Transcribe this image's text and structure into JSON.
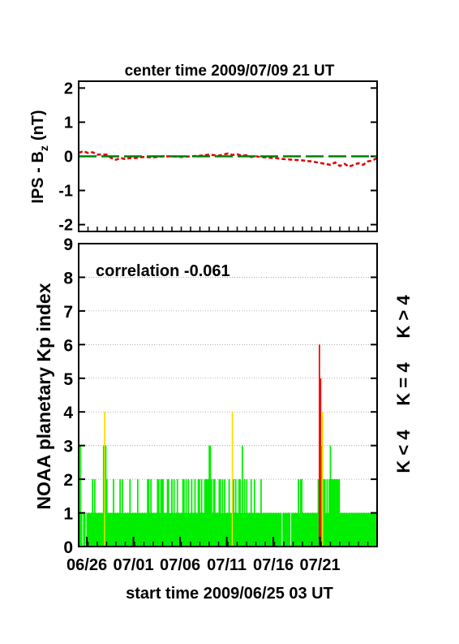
{
  "chart_data": [
    {
      "type": "line",
      "title": "center time 2009/07/09 21 UT",
      "ylabel_main": "IPS - B",
      "ylabel_sub": "z",
      "ylabel_unit": "(nT)",
      "ylim": [
        -2.2,
        2.2
      ],
      "yticks": [
        "2",
        "1",
        "0",
        "-1",
        "-2"
      ],
      "series": [
        {
          "color": "#dd0000",
          "style": "dashed",
          "x": [
            0,
            0.5,
            1,
            1.5,
            2,
            2.5,
            3,
            3.5,
            4,
            4.5,
            5,
            5.5,
            6,
            7,
            8,
            9,
            10,
            11,
            12,
            13,
            14,
            15,
            16,
            16.5,
            17,
            17.5,
            18,
            18.5,
            19,
            20,
            21,
            22,
            23,
            24,
            25,
            26,
            27,
            27.5,
            28,
            28.5,
            29,
            29.5,
            30,
            30.5,
            31,
            31.5,
            32
          ],
          "y": [
            0.1,
            0.15,
            0.1,
            0.12,
            0.05,
            0.05,
            0.05,
            -0.05,
            -0.1,
            -0.05,
            -0.08,
            -0.05,
            -0.05,
            -0.02,
            -0.03,
            0,
            0,
            -0.02,
            0,
            0.02,
            0.05,
            0.02,
            0.08,
            0.04,
            0.06,
            0.02,
            0.03,
            -0.02,
            0,
            -0.03,
            -0.05,
            -0.08,
            -0.1,
            -0.12,
            -0.15,
            -0.2,
            -0.25,
            -0.18,
            -0.28,
            -0.22,
            -0.3,
            -0.25,
            -0.2,
            -0.25,
            -0.15,
            -0.12,
            -0.05
          ]
        },
        {
          "color": "#008000",
          "style": "long-dash",
          "x": [
            0,
            32
          ],
          "y": [
            0,
            0
          ]
        }
      ]
    },
    {
      "type": "bar",
      "ylabel": "NOAA planetary Kp index",
      "annotation": "correlation -0.061",
      "xlabel": "start time 2009/06/25 03 UT",
      "ylim": [
        0,
        9
      ],
      "yticks": [
        "9",
        "8",
        "7",
        "6",
        "5",
        "4",
        "3",
        "2",
        "1",
        "0"
      ],
      "xticks": [
        "06/26",
        "07/01",
        "07/06",
        "07/11",
        "07/16",
        "07/21"
      ],
      "xtick_days": [
        0.875,
        5.875,
        10.875,
        15.875,
        20.875,
        25.875
      ],
      "legend": [
        {
          "label": "K < 4",
          "color": "#00ee00"
        },
        {
          "label": "K = 4",
          "color": "#ffdd00"
        },
        {
          "label": "K > 4",
          "color": "#ff0000"
        }
      ],
      "kp_values": [
        1,
        3,
        1,
        0,
        1,
        1,
        0,
        1,
        1,
        1,
        1,
        1,
        2,
        1,
        2,
        1,
        1,
        1,
        1,
        1,
        1,
        1,
        3,
        4,
        3,
        2,
        1,
        1,
        1,
        1,
        1,
        2,
        1,
        1,
        1,
        1,
        1,
        2,
        1,
        2,
        1,
        1,
        1,
        1,
        1,
        1,
        2,
        1,
        1,
        1,
        1,
        1,
        1,
        2,
        1,
        1,
        1,
        1,
        1,
        1,
        1,
        1,
        2,
        2,
        1,
        2,
        1,
        1,
        1,
        1,
        1,
        2,
        2,
        1,
        2,
        2,
        2,
        1,
        1,
        1,
        2,
        2,
        1,
        1,
        2,
        1,
        2,
        1,
        1,
        2,
        1,
        1,
        1,
        1,
        2,
        2,
        1,
        2,
        1,
        2,
        1,
        1,
        2,
        1,
        1,
        2,
        1,
        1,
        2,
        2,
        1,
        2,
        1,
        1,
        2,
        2,
        2,
        2,
        3,
        3,
        2,
        1,
        2,
        2,
        1,
        1,
        1,
        2,
        2,
        1,
        2,
        1,
        2,
        1,
        1,
        1,
        2,
        1,
        1,
        4,
        2,
        1,
        2,
        1,
        1,
        2,
        2,
        1,
        3,
        1,
        2,
        1,
        2,
        1,
        1,
        1,
        2,
        1,
        1,
        2,
        1,
        1,
        1,
        1,
        1,
        2,
        1,
        1,
        1,
        1,
        1,
        1,
        1,
        1,
        1,
        1,
        1,
        1,
        1,
        1,
        1,
        1,
        1,
        1,
        0,
        1,
        1,
        1,
        1,
        1,
        1,
        1,
        0,
        1,
        1,
        1,
        1,
        1,
        1,
        2,
        1,
        2,
        2,
        1,
        1,
        1,
        1,
        1,
        1,
        1,
        1,
        1,
        1,
        1,
        1,
        1,
        1,
        2,
        6,
        5,
        3,
        4,
        2,
        2,
        1,
        2,
        1,
        2,
        3,
        2,
        2,
        2,
        2,
        2,
        2,
        2,
        2,
        1,
        1,
        1,
        1,
        1,
        1,
        1,
        1,
        1,
        1,
        1,
        1,
        1,
        1,
        1,
        1,
        1,
        1,
        1,
        1,
        1,
        1,
        1,
        1,
        1,
        1,
        1,
        1,
        1,
        1,
        1,
        1,
        1,
        1
      ]
    }
  ]
}
